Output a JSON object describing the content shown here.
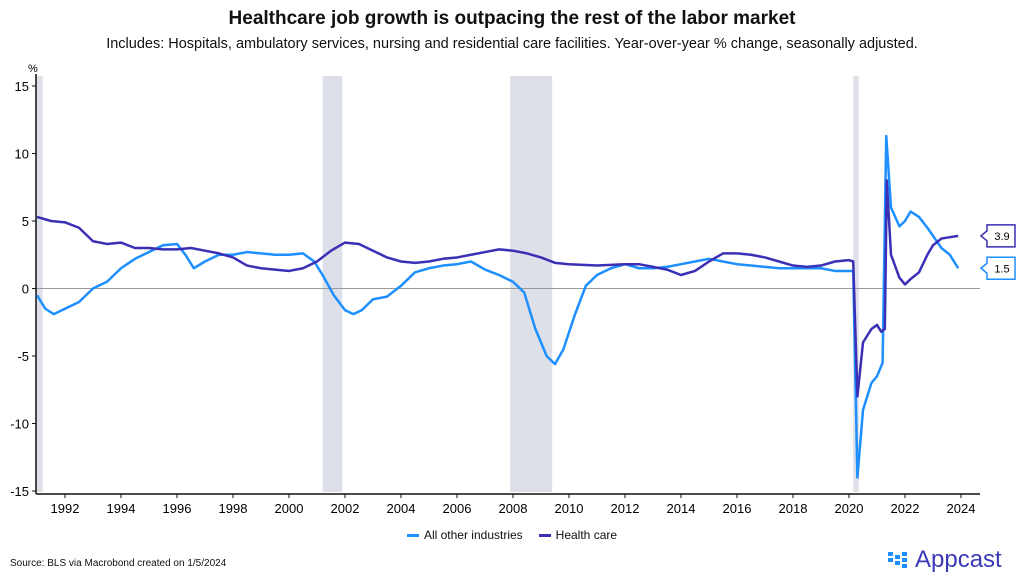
{
  "chart_data": {
    "type": "line",
    "title": "Healthcare job growth is outpacing the rest of the labor market",
    "subtitle": "Includes: Hospitals, ambulatory services, nursing and residential care facilities. Year-over-year % change, seasonally adjusted.",
    "ylabel": "%",
    "ylim": [
      -15,
      15
    ],
    "xlim": [
      1991,
      2024.6
    ],
    "yticks": [
      15,
      10,
      5,
      0,
      -5,
      -10,
      -15
    ],
    "xticks": [
      1992,
      1994,
      1996,
      1998,
      2000,
      2002,
      2004,
      2006,
      2008,
      2010,
      2012,
      2014,
      2016,
      2018,
      2020,
      2022,
      2024
    ],
    "recessions": [
      [
        1990.9,
        1991.2
      ],
      [
        2001.2,
        2001.9
      ],
      [
        2007.9,
        2009.4
      ],
      [
        2020.15,
        2020.35
      ]
    ],
    "series": [
      {
        "name": "All other industries",
        "color": "#1e8fff",
        "end_label": "1.5",
        "points": [
          [
            1991,
            -0.5
          ],
          [
            1991.3,
            -1.5
          ],
          [
            1991.6,
            -1.9
          ],
          [
            1992,
            -1.5
          ],
          [
            1992.5,
            -1
          ],
          [
            1993,
            0
          ],
          [
            1993.5,
            0.5
          ],
          [
            1994,
            1.5
          ],
          [
            1994.5,
            2.2
          ],
          [
            1995,
            2.7
          ],
          [
            1995.5,
            3.2
          ],
          [
            1996,
            3.3
          ],
          [
            1996.3,
            2.5
          ],
          [
            1996.6,
            1.5
          ],
          [
            1997,
            2
          ],
          [
            1997.5,
            2.5
          ],
          [
            1998,
            2.5
          ],
          [
            1998.5,
            2.7
          ],
          [
            1999,
            2.6
          ],
          [
            1999.5,
            2.5
          ],
          [
            2000,
            2.5
          ],
          [
            2000.5,
            2.6
          ],
          [
            2000.9,
            2
          ],
          [
            2001.2,
            1
          ],
          [
            2001.6,
            -0.5
          ],
          [
            2002,
            -1.6
          ],
          [
            2002.3,
            -1.9
          ],
          [
            2002.6,
            -1.6
          ],
          [
            2003,
            -0.8
          ],
          [
            2003.5,
            -0.6
          ],
          [
            2004,
            0.2
          ],
          [
            2004.5,
            1.2
          ],
          [
            2005,
            1.5
          ],
          [
            2005.5,
            1.7
          ],
          [
            2006,
            1.8
          ],
          [
            2006.5,
            2
          ],
          [
            2007,
            1.4
          ],
          [
            2007.5,
            1
          ],
          [
            2008,
            0.5
          ],
          [
            2008.4,
            -0.3
          ],
          [
            2008.8,
            -3
          ],
          [
            2009.2,
            -5
          ],
          [
            2009.5,
            -5.6
          ],
          [
            2009.8,
            -4.5
          ],
          [
            2010.2,
            -2
          ],
          [
            2010.6,
            0.2
          ],
          [
            2011,
            1
          ],
          [
            2011.5,
            1.5
          ],
          [
            2012,
            1.8
          ],
          [
            2012.5,
            1.5
          ],
          [
            2013,
            1.5
          ],
          [
            2013.5,
            1.6
          ],
          [
            2014,
            1.8
          ],
          [
            2014.5,
            2
          ],
          [
            2015,
            2.2
          ],
          [
            2015.5,
            2
          ],
          [
            2016,
            1.8
          ],
          [
            2016.5,
            1.7
          ],
          [
            2017,
            1.6
          ],
          [
            2017.5,
            1.5
          ],
          [
            2018,
            1.5
          ],
          [
            2018.5,
            1.5
          ],
          [
            2019,
            1.5
          ],
          [
            2019.5,
            1.3
          ],
          [
            2020,
            1.3
          ],
          [
            2020.15,
            1.3
          ],
          [
            2020.3,
            -14
          ],
          [
            2020.5,
            -9
          ],
          [
            2020.8,
            -7
          ],
          [
            2021,
            -6.5
          ],
          [
            2021.2,
            -5.5
          ],
          [
            2021.33,
            11.3
          ],
          [
            2021.5,
            6
          ],
          [
            2021.8,
            4.6
          ],
          [
            2022,
            5
          ],
          [
            2022.2,
            5.7
          ],
          [
            2022.5,
            5.3
          ],
          [
            2022.8,
            4.5
          ],
          [
            2023,
            3.9
          ],
          [
            2023.3,
            3
          ],
          [
            2023.6,
            2.5
          ],
          [
            2023.9,
            1.5
          ]
        ]
      },
      {
        "name": "Health care",
        "color": "#3a2fb5",
        "end_label": "3.9",
        "points": [
          [
            1991,
            5.3
          ],
          [
            1991.5,
            5
          ],
          [
            1992,
            4.9
          ],
          [
            1992.5,
            4.5
          ],
          [
            1993,
            3.5
          ],
          [
            1993.5,
            3.3
          ],
          [
            1994,
            3.4
          ],
          [
            1994.5,
            3
          ],
          [
            1995,
            3
          ],
          [
            1995.5,
            2.9
          ],
          [
            1996,
            2.9
          ],
          [
            1996.5,
            3
          ],
          [
            1997,
            2.8
          ],
          [
            1997.5,
            2.6
          ],
          [
            1998,
            2.3
          ],
          [
            1998.5,
            1.7
          ],
          [
            1999,
            1.5
          ],
          [
            1999.5,
            1.4
          ],
          [
            2000,
            1.3
          ],
          [
            2000.5,
            1.5
          ],
          [
            2001,
            2
          ],
          [
            2001.5,
            2.8
          ],
          [
            2002,
            3.4
          ],
          [
            2002.5,
            3.3
          ],
          [
            2003,
            2.8
          ],
          [
            2003.5,
            2.3
          ],
          [
            2004,
            2
          ],
          [
            2004.5,
            1.9
          ],
          [
            2005,
            2
          ],
          [
            2005.5,
            2.2
          ],
          [
            2006,
            2.3
          ],
          [
            2006.5,
            2.5
          ],
          [
            2007,
            2.7
          ],
          [
            2007.5,
            2.9
          ],
          [
            2008,
            2.8
          ],
          [
            2008.5,
            2.6
          ],
          [
            2009,
            2.3
          ],
          [
            2009.5,
            1.9
          ],
          [
            2010,
            1.8
          ],
          [
            2011,
            1.7
          ],
          [
            2012,
            1.8
          ],
          [
            2012.5,
            1.8
          ],
          [
            2013,
            1.6
          ],
          [
            2013.5,
            1.4
          ],
          [
            2014,
            1
          ],
          [
            2014.5,
            1.3
          ],
          [
            2015,
            2
          ],
          [
            2015.5,
            2.6
          ],
          [
            2016,
            2.6
          ],
          [
            2016.5,
            2.5
          ],
          [
            2017,
            2.3
          ],
          [
            2017.5,
            2
          ],
          [
            2018,
            1.7
          ],
          [
            2018.5,
            1.6
          ],
          [
            2019,
            1.7
          ],
          [
            2019.5,
            2
          ],
          [
            2020,
            2.1
          ],
          [
            2020.15,
            2
          ],
          [
            2020.3,
            -8
          ],
          [
            2020.5,
            -4
          ],
          [
            2020.8,
            -3
          ],
          [
            2021,
            -2.7
          ],
          [
            2021.15,
            -3.2
          ],
          [
            2021.28,
            -3
          ],
          [
            2021.35,
            8
          ],
          [
            2021.5,
            2.5
          ],
          [
            2021.8,
            0.8
          ],
          [
            2022,
            0.3
          ],
          [
            2022.2,
            0.7
          ],
          [
            2022.5,
            1.2
          ],
          [
            2022.8,
            2.5
          ],
          [
            2023,
            3.2
          ],
          [
            2023.3,
            3.7
          ],
          [
            2023.6,
            3.8
          ],
          [
            2023.9,
            3.9
          ]
        ]
      }
    ]
  },
  "source": "Source: BLS via Macrobond created on 1/5/2024",
  "logo": "Appcast"
}
